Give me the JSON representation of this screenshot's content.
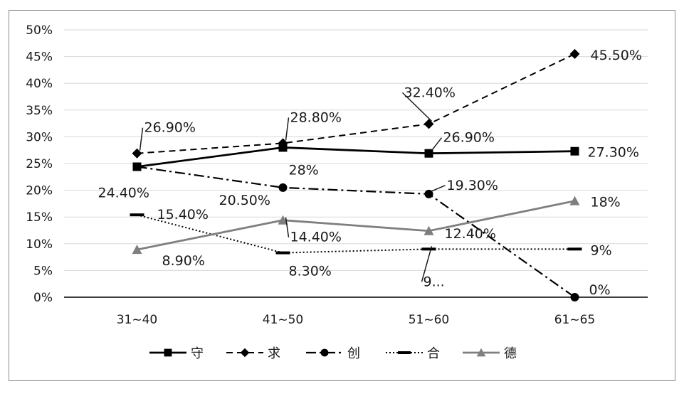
{
  "chart_data": {
    "type": "line",
    "categories": [
      "31~40",
      "41~50",
      "51~60",
      "61~65"
    ],
    "ylim": [
      0,
      50
    ],
    "y_ticks": [
      "0%",
      "5%",
      "10%",
      "15%",
      "20%",
      "25%",
      "30%",
      "35%",
      "40%",
      "45%",
      "50%"
    ],
    "grid": "horizontal",
    "legend_position": "bottom",
    "series": [
      {
        "name": "守",
        "marker": "square",
        "dash": "solid",
        "color": "#000000",
        "values": [
          24.4,
          28,
          26.9,
          27.3
        ],
        "labels": [
          "",
          "28%",
          "26.90%",
          "27.30%"
        ]
      },
      {
        "name": "求",
        "marker": "diamond",
        "dash": "dashed",
        "color": "#000000",
        "values": [
          26.9,
          28.8,
          32.4,
          45.5
        ],
        "labels": [
          "26.90%",
          "28.80%",
          "32.40%",
          "45.50%"
        ]
      },
      {
        "name": "创",
        "marker": "circle",
        "dash": "dashdot",
        "color": "#000000",
        "values": [
          24.4,
          20.5,
          19.3,
          0
        ],
        "labels": [
          "24.40%",
          "20.50%",
          "19.30%",
          "0%"
        ]
      },
      {
        "name": "合",
        "marker": "dash",
        "dash": "dotted",
        "color": "#000000",
        "values": [
          15.4,
          8.3,
          9,
          9
        ],
        "labels": [
          "15.40%",
          "8.30%",
          "9...",
          "9%"
        ]
      },
      {
        "name": "德",
        "marker": "triangle",
        "dash": "solid",
        "color": "#7f7f7f",
        "values": [
          8.9,
          14.4,
          12.4,
          18
        ],
        "labels": [
          "8.90%",
          "14.40%",
          "12.40%",
          "18%"
        ]
      }
    ]
  }
}
